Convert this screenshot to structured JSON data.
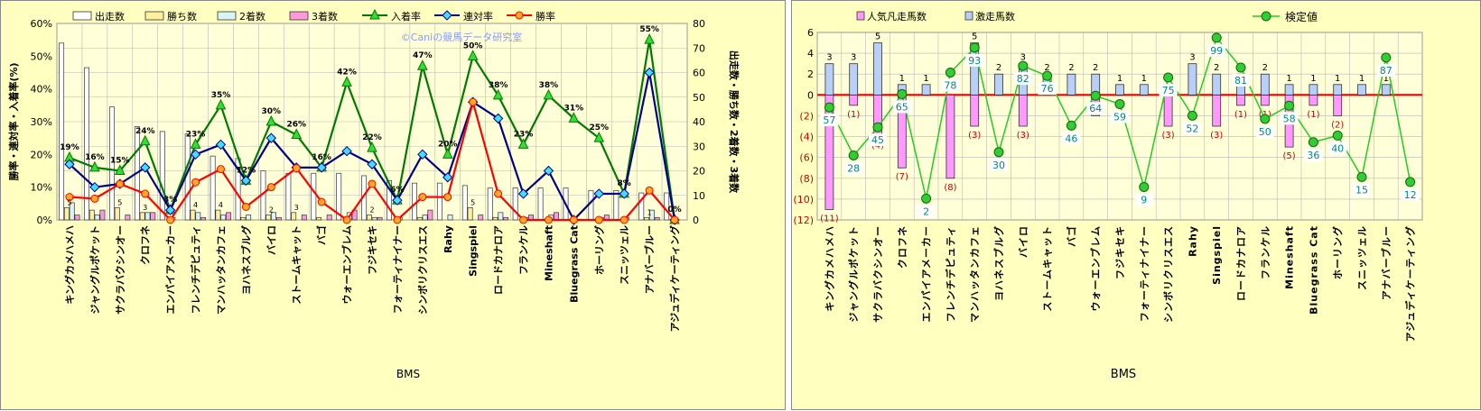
{
  "chart_data": [
    {
      "type": "bar",
      "xlabel": "BMS",
      "ylabel": "勝率・連対率・入着率(%)",
      "y2label": "出走数・勝ち数・2着数・3着数",
      "ylim": [
        0,
        60
      ],
      "y2lim": [
        0,
        80
      ],
      "yticks": [
        "0%",
        "10%",
        "20%",
        "30%",
        "40%",
        "50%",
        "60%"
      ],
      "y2ticks": [
        "0",
        "10",
        "20",
        "30",
        "40",
        "50",
        "60",
        "70",
        "80"
      ],
      "watermark": "©Caniの競馬データ研究室",
      "grid": true,
      "legend_position": "top",
      "categories": [
        "キングカメハメハ",
        "ジャングルポケット",
        "サクラバクシンオー",
        "クロフネ",
        "エンパイアメーカー",
        "フレンチデピュティ",
        "マンハッタンカフェ",
        "ヨハネスブルグ",
        "バイロ",
        "ストームキャット",
        "バゴ",
        "ウォーエンブレム",
        "フジキセキ",
        "フォーティナイナー",
        "シンボリクリスエス",
        "Rahy",
        "Singspiel",
        "ロードカナロア",
        "フランケル",
        "Mineshaft",
        "Bluegrass Cat",
        "ホーリング",
        "スニッツェル",
        "アナバーブルー",
        "アジュディケーティング"
      ],
      "bar_series": [
        {
          "name": "出走数",
          "color": "#ffffff",
          "values": [
            72,
            62,
            46,
            38,
            36,
            35,
            26,
            25,
            20,
            19,
            19,
            19,
            18,
            16,
            15,
            15,
            14,
            13,
            13,
            13,
            13,
            12,
            12,
            11,
            11
          ]
        },
        {
          "name": "勝ち数",
          "color": "#fff0a0",
          "values": [
            5,
            4,
            5,
            3,
            0,
            4,
            4,
            1,
            2,
            3,
            1,
            0,
            2,
            0,
            1,
            0,
            5,
            1,
            0,
            0,
            0,
            0,
            0,
            1,
            0
          ]
        },
        {
          "name": "2着数",
          "color": "#d8f4f4",
          "values": [
            7,
            2,
            0,
            3,
            1,
            3,
            2,
            2,
            3,
            0,
            0,
            3,
            1,
            1,
            2,
            2,
            0,
            3,
            1,
            2,
            0,
            1,
            1,
            4,
            0
          ]
        },
        {
          "name": "3着数",
          "color": "#ff99dd",
          "values": [
            2,
            4,
            2,
            3,
            0,
            1,
            3,
            0,
            1,
            2,
            2,
            4,
            1,
            0,
            4,
            0,
            2,
            1,
            2,
            3,
            0,
            2,
            0,
            1,
            0
          ]
        }
      ],
      "line_series": [
        {
          "name": "入着率",
          "color": "#007a00",
          "marker": "triangle",
          "values": [
            19,
            16,
            15,
            24,
            3,
            23,
            35,
            12,
            30,
            26,
            16,
            42,
            22,
            6,
            47,
            20,
            50,
            38,
            23,
            38,
            31,
            25,
            8,
            55,
            0
          ]
        },
        {
          "name": "連対率",
          "color": "#00008b",
          "marker": "diamond",
          "values": [
            17,
            10,
            11,
            16,
            3,
            20,
            23,
            12,
            25,
            16,
            16,
            21,
            17,
            6,
            20,
            13,
            36,
            31,
            8,
            15,
            0,
            8,
            8,
            45,
            0
          ]
        },
        {
          "name": "勝率",
          "color": "#ff0000",
          "marker": "circle",
          "values": [
            7,
            6.5,
            11,
            8,
            0,
            11.5,
            15.5,
            4,
            10,
            15.8,
            5.5,
            0,
            11,
            0,
            7,
            7,
            36,
            8,
            0,
            0,
            0,
            0,
            0,
            9,
            0
          ]
        }
      ],
      "data_labels": {
        "入着率": [
          "19%",
          "16%",
          "15%",
          "24%",
          "3%",
          "23%",
          "35%",
          "12%",
          "30%",
          "26%",
          "16%",
          "42%",
          "22%",
          "6%",
          "47%",
          "20%",
          "50%",
          "38%",
          "23%",
          "38%",
          "31%",
          "25%",
          "8%",
          "55%",
          "0%"
        ],
        "勝ち数": [
          "5",
          "",
          "5",
          "3",
          "",
          "4",
          "4",
          "",
          "2",
          "3",
          "",
          "",
          "2",
          "",
          "",
          "",
          "5",
          "",
          "",
          "",
          "",
          "",
          "",
          "1",
          ""
        ]
      }
    },
    {
      "type": "bar",
      "xlabel": "BMS",
      "ylim": [
        -12,
        6
      ],
      "yticks": [
        "6",
        "4",
        "2",
        "0",
        "(2)",
        "(4)",
        "(6)",
        "(8)",
        "(10)",
        "(12)"
      ],
      "grid": true,
      "legend_position": "top",
      "categories": [
        "キングカメハメハ",
        "ジャングルポケット",
        "サクラバクシンオー",
        "クロフネ",
        "エンパイアメーカー",
        "フレンチデピュティ",
        "マンハッタンカフェ",
        "ヨハネスブルグ",
        "バイロ",
        "ストームキャット",
        "バゴ",
        "ウォーエンブレム",
        "フジキセキ",
        "フォーティナイナー",
        "シンボリクリスエス",
        "Rahy",
        "Singspiel",
        "ロードカナロア",
        "フランケル",
        "Mineshaft",
        "Bluegrass Cat",
        "ホーリング",
        "スニッツェル",
        "アナバーブルー",
        "アジュディケーティング"
      ],
      "series": [
        {
          "name": "人気凡走馬数",
          "color": "#ff99ff",
          "values": [
            -11,
            -1,
            -4,
            -7,
            0,
            -8,
            -3,
            0,
            -3,
            0,
            0,
            -2,
            0,
            0,
            -3,
            0,
            -3,
            -1,
            -1,
            -5,
            -1,
            -2,
            0,
            0,
            0
          ]
        },
        {
          "name": "激走馬数",
          "color": "#b8cff8",
          "values": [
            3,
            3,
            5,
            1,
            1,
            0,
            5,
            2,
            3,
            2,
            2,
            2,
            1,
            1,
            1,
            3,
            2,
            2,
            2,
            1,
            1,
            1,
            1,
            1,
            0
          ]
        }
      ],
      "line_series": [
        {
          "name": "検定値",
          "color": "#22cc22",
          "marker": "circle",
          "values": [
            57,
            28,
            45,
            65,
            2,
            78,
            93,
            30,
            82,
            76,
            46,
            64,
            59,
            9,
            75,
            52,
            99,
            81,
            50,
            58,
            36,
            40,
            15,
            87,
            12
          ]
        }
      ],
      "data_labels": {
        "激走馬数": [
          "3",
          "3",
          "5",
          "1",
          "1",
          "",
          "5",
          "2",
          "3",
          "2",
          "2",
          "2",
          "1",
          "1",
          "1",
          "3",
          "2",
          "2",
          "2",
          "1",
          "1",
          "1",
          "1",
          "1",
          ""
        ],
        "人気凡走馬数": [
          "(11)",
          "(1)",
          "(4)",
          "(7)",
          "",
          "(8)",
          "(3)",
          "",
          "(3)",
          "",
          "",
          "",
          "",
          "",
          "(3)",
          "",
          "(3)",
          "(1)",
          "(1)",
          "(5)",
          "(1)",
          "(2)",
          "",
          "",
          ""
        ],
        "検定値": [
          "57",
          "28",
          "45",
          "65",
          "2",
          "78",
          "93",
          "30",
          "82",
          "76",
          "46",
          "64",
          "59",
          "9",
          "75",
          "52",
          "99",
          "81",
          "50",
          "58",
          "36",
          "40",
          "15",
          "87",
          "12"
        ]
      }
    }
  ]
}
